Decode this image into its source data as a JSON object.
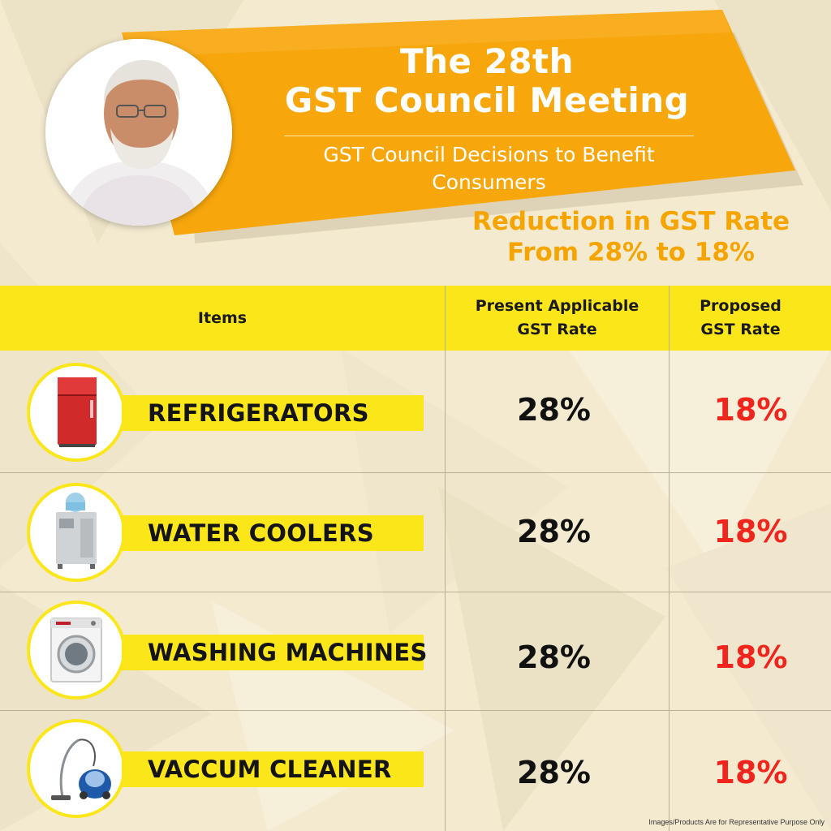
{
  "header": {
    "title_line1": "The 28th",
    "title_line2": "GST Council Meeting",
    "subtitle": "GST Council Decisions to Benefit Consumers",
    "reduction_line1": "Reduction in GST Rate",
    "reduction_line2": "From 28% to 18%"
  },
  "table": {
    "headers": {
      "items": "Items",
      "present_line1": "Present Applicable",
      "present_line2": "GST Rate",
      "proposed_line1": "Proposed",
      "proposed_line2": "GST Rate"
    },
    "rows": [
      {
        "item": "REFRIGERATORS",
        "icon": "refrigerator-icon",
        "present": "28%",
        "proposed": "18%"
      },
      {
        "item": "WATER COOLERS",
        "icon": "water-cooler-icon",
        "present": "28%",
        "proposed": "18%"
      },
      {
        "item": "WASHING MACHINES",
        "icon": "washing-machine-icon",
        "present": "28%",
        "proposed": "18%"
      },
      {
        "item": "VACCUM CLEANER",
        "icon": "vacuum-cleaner-icon",
        "present": "28%",
        "proposed": "18%"
      }
    ]
  },
  "footer": {
    "disclaimer": "Images/Products Are for Representative Purpose Only"
  },
  "colors": {
    "banner_orange": "#f7a70c",
    "accent_yellow": "#fbe61a",
    "reduction_text": "#f5a400",
    "proposed_rate": "#f0251d",
    "background": "#f3ead0"
  }
}
